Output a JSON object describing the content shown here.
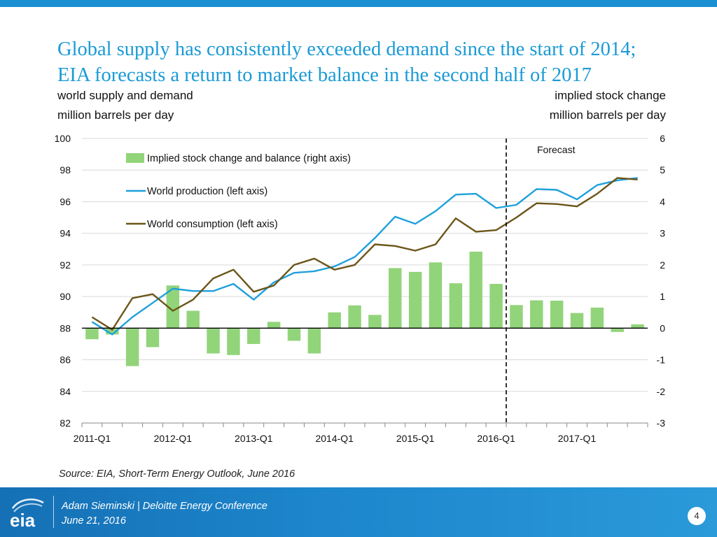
{
  "header": {
    "title_line1": "Global supply has consistently exceeded demand since the start of 2014;",
    "title_line2": "EIA forecasts a return to market balance in the second half of 2017"
  },
  "axes_labels": {
    "left_line1": "world supply and demand",
    "left_line2": "million barrels per day",
    "right_line1": "implied stock change",
    "right_line2": "million barrels per day"
  },
  "chart_data": {
    "type": "bar+line",
    "categories": [
      "2011-Q1",
      "2011-Q2",
      "2011-Q3",
      "2011-Q4",
      "2012-Q1",
      "2012-Q2",
      "2012-Q3",
      "2012-Q4",
      "2013-Q1",
      "2013-Q2",
      "2013-Q3",
      "2013-Q4",
      "2014-Q1",
      "2014-Q2",
      "2014-Q3",
      "2014-Q4",
      "2015-Q1",
      "2015-Q2",
      "2015-Q3",
      "2015-Q4",
      "2016-Q1",
      "2016-Q2",
      "2016-Q3",
      "2016-Q4",
      "2017-Q1",
      "2017-Q2",
      "2017-Q3",
      "2017-Q4"
    ],
    "x_tick_labels": [
      "2011-Q1",
      "2012-Q1",
      "2013-Q1",
      "2014-Q1",
      "2015-Q1",
      "2016-Q1",
      "2017-Q1"
    ],
    "left_axis": {
      "min": 82,
      "max": 100,
      "ticks": [
        "100",
        "98",
        "96",
        "94",
        "92",
        "90",
        "88",
        "86",
        "84",
        "82"
      ]
    },
    "right_axis": {
      "min": -3,
      "max": 6,
      "ticks": [
        "6",
        "5",
        "4",
        "3",
        "2",
        "1",
        "0",
        "-1",
        "-2",
        "-3"
      ]
    },
    "series": [
      {
        "name": "Implied stock change and balance (right axis)",
        "kind": "bar",
        "axis": "right",
        "color": "#92d47a",
        "values": [
          -0.35,
          -0.2,
          -1.2,
          -0.6,
          1.35,
          0.55,
          -0.8,
          -0.85,
          -0.5,
          0.2,
          -0.4,
          -0.8,
          0.5,
          0.72,
          0.42,
          1.9,
          1.78,
          2.08,
          1.42,
          2.42,
          1.4,
          0.73,
          0.88,
          0.87,
          0.48,
          0.65,
          -0.12,
          0.12
        ]
      },
      {
        "name": "World production (left axis)",
        "kind": "line",
        "axis": "left",
        "color": "#1ea0dc",
        "values": [
          88.4,
          87.6,
          88.7,
          89.6,
          90.5,
          90.35,
          90.35,
          90.8,
          89.8,
          90.9,
          91.5,
          91.6,
          91.9,
          92.5,
          93.7,
          95.05,
          94.6,
          95.4,
          96.45,
          96.5,
          95.6,
          95.8,
          96.8,
          96.75,
          96.15,
          97.05,
          97.35,
          97.5
        ]
      },
      {
        "name": "World consumption (left axis)",
        "kind": "line",
        "axis": "left",
        "color": "#6b5518",
        "values": [
          88.7,
          87.9,
          89.9,
          90.15,
          89.1,
          89.8,
          91.15,
          91.7,
          90.3,
          90.7,
          92.0,
          92.4,
          91.7,
          92.0,
          93.3,
          93.2,
          92.9,
          93.3,
          94.95,
          94.1,
          94.2,
          95.0,
          95.9,
          95.85,
          95.7,
          96.5,
          97.5,
          97.4
        ]
      }
    ],
    "forecast_label": "Forecast",
    "forecast_start_index": 20.5
  },
  "source": "Source: EIA, Short-Term Energy Outlook, June 2016",
  "footer": {
    "line1": "Adam Sieminski | Deloitte Energy Conference",
    "line2": "June 21, 2016",
    "page_number": "4",
    "logo_text": "eia"
  }
}
